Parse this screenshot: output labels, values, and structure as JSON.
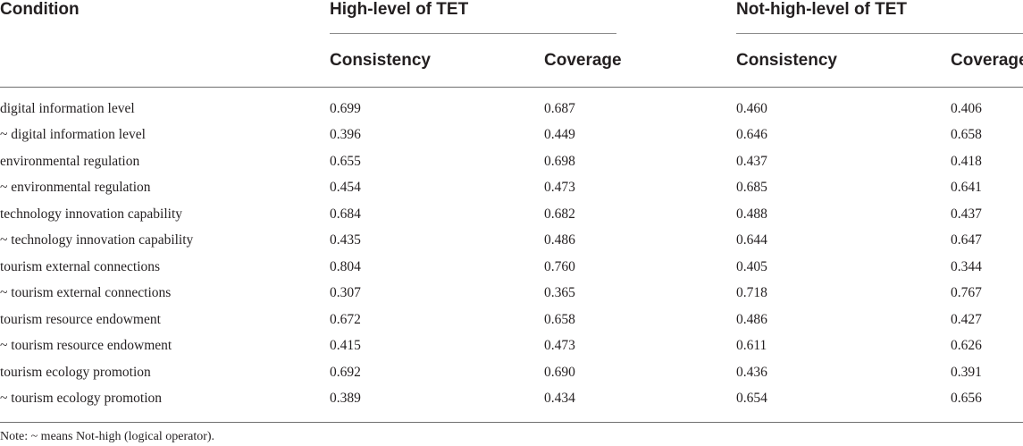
{
  "table": {
    "header": {
      "condition": "Condition",
      "high_group": "High-level of TET",
      "nothigh_group": "Not-high-level of TET",
      "consistency": "Consistency",
      "coverage": "Coverage"
    },
    "rows": [
      {
        "condition": "digital information level",
        "high_consistency": "0.699",
        "high_coverage": "0.687",
        "nothigh_consistency": "0.460",
        "nothigh_coverage": "0.406"
      },
      {
        "condition": "~ digital information level",
        "high_consistency": "0.396",
        "high_coverage": "0.449",
        "nothigh_consistency": "0.646",
        "nothigh_coverage": "0.658"
      },
      {
        "condition": "environmental regulation",
        "high_consistency": "0.655",
        "high_coverage": "0.698",
        "nothigh_consistency": "0.437",
        "nothigh_coverage": "0.418"
      },
      {
        "condition": "~ environmental regulation",
        "high_consistency": "0.454",
        "high_coverage": "0.473",
        "nothigh_consistency": "0.685",
        "nothigh_coverage": "0.641"
      },
      {
        "condition": "technology innovation capability",
        "high_consistency": "0.684",
        "high_coverage": "0.682",
        "nothigh_consistency": "0.488",
        "nothigh_coverage": "0.437"
      },
      {
        "condition": "~ technology innovation capability",
        "high_consistency": "0.435",
        "high_coverage": "0.486",
        "nothigh_consistency": "0.644",
        "nothigh_coverage": "0.647"
      },
      {
        "condition": "tourism external connections",
        "high_consistency": "0.804",
        "high_coverage": "0.760",
        "nothigh_consistency": "0.405",
        "nothigh_coverage": "0.344"
      },
      {
        "condition": "~ tourism external connections",
        "high_consistency": "0.307",
        "high_coverage": "0.365",
        "nothigh_consistency": "0.718",
        "nothigh_coverage": "0.767"
      },
      {
        "condition": "tourism resource endowment",
        "high_consistency": "0.672",
        "high_coverage": "0.658",
        "nothigh_consistency": "0.486",
        "nothigh_coverage": "0.427"
      },
      {
        "condition": "~ tourism resource endowment",
        "high_consistency": "0.415",
        "high_coverage": "0.473",
        "nothigh_consistency": "0.611",
        "nothigh_coverage": "0.626"
      },
      {
        "condition": "tourism ecology promotion",
        "high_consistency": "0.692",
        "high_coverage": "0.690",
        "nothigh_consistency": "0.436",
        "nothigh_coverage": "0.391"
      },
      {
        "condition": "~ tourism ecology promotion",
        "high_consistency": "0.389",
        "high_coverage": "0.434",
        "nothigh_consistency": "0.654",
        "nothigh_coverage": "0.656"
      }
    ]
  },
  "note": "Note: ~ means Not-high (logical operator)."
}
